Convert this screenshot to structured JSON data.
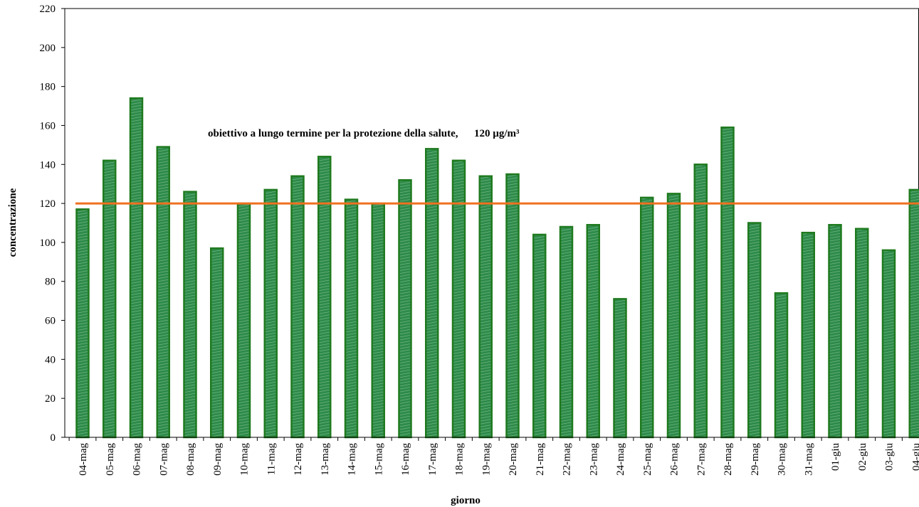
{
  "chart_data": {
    "type": "bar",
    "x_label": "giorno",
    "y_label": "concentrazione",
    "categories": [
      "04-mag",
      "05-mag",
      "06-mag",
      "07-mag",
      "08-mag",
      "09-mag",
      "10-mag",
      "11-mag",
      "12-mag",
      "13-mag",
      "14-mag",
      "15-mag",
      "16-mag",
      "17-mag",
      "18-mag",
      "19-mag",
      "20-mag",
      "21-mag",
      "22-mag",
      "23-mag",
      "24-mag",
      "25-mag",
      "26-mag",
      "27-mag",
      "28-mag",
      "29-mag",
      "30-mag",
      "31-mag",
      "01-giu",
      "02-giu",
      "03-giu",
      "04-giu"
    ],
    "values": [
      117,
      142,
      174,
      149,
      126,
      97,
      120,
      127,
      134,
      144,
      122,
      120,
      132,
      148,
      142,
      134,
      135,
      104,
      108,
      109,
      71,
      123,
      125,
      140,
      159,
      110,
      74,
      105,
      109,
      107,
      96,
      127
    ],
    "color": "#2e8b4a",
    "ylim": [
      0,
      220
    ],
    "yticks": [
      0,
      20,
      40,
      60,
      80,
      100,
      120,
      140,
      160,
      180,
      200,
      220
    ],
    "reference_line": {
      "value": 120,
      "color": "#f07020",
      "label": "obiettivo a lungo termine per la protezione della salute,      120 µg/m³"
    }
  }
}
